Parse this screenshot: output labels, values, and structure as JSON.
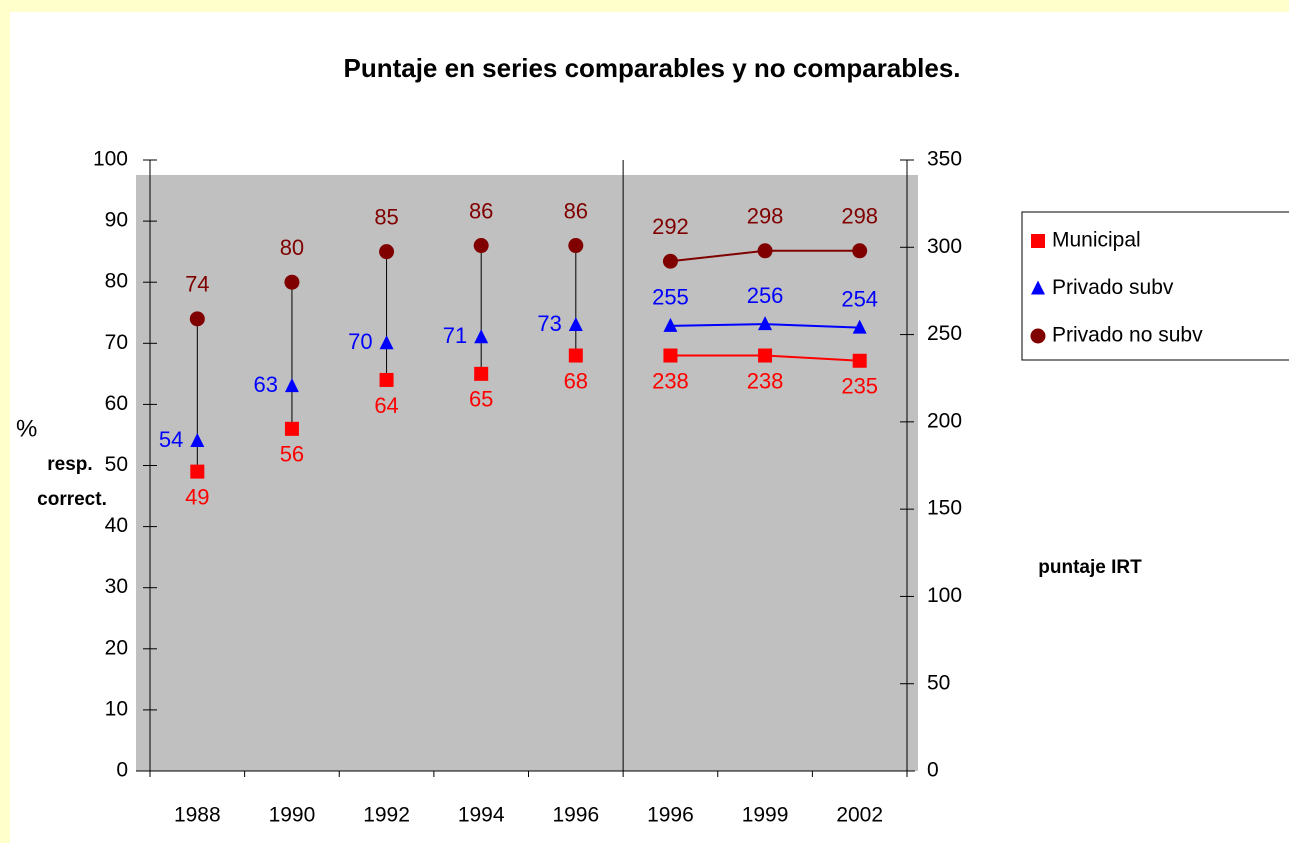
{
  "chart_data": {
    "type": "line",
    "title": "Puntaje en series comparables y no comparables.",
    "y_label_lines": [
      "%",
      "resp.",
      "correct."
    ],
    "y2_label": "puntaje IRT",
    "categories": [
      "1988",
      "1990",
      "1992",
      "1994",
      "1996",
      "1996",
      "1999",
      "2002"
    ],
    "ylim": [
      0,
      100
    ],
    "yticks": [
      0,
      10,
      20,
      30,
      40,
      50,
      60,
      70,
      80,
      90,
      100
    ],
    "y2lim": [
      0,
      350
    ],
    "y2ticks": [
      0,
      50,
      100,
      150,
      200,
      250,
      300,
      350
    ],
    "legend": "right",
    "series": [
      {
        "name": "Municipal",
        "color": "#ff0000",
        "marker": "square",
        "values": [
          49,
          56,
          64,
          65,
          68,
          null,
          null,
          null
        ],
        "y2_values": [
          null,
          null,
          null,
          null,
          null,
          238,
          238,
          235
        ]
      },
      {
        "name": "Privado subv",
        "color": "#0000ff",
        "marker": "triangle",
        "values": [
          54,
          63,
          70,
          71,
          73,
          null,
          null,
          null
        ],
        "y2_values": [
          null,
          null,
          null,
          null,
          null,
          255,
          256,
          254
        ]
      },
      {
        "name": "Privado no subv",
        "color": "#800000",
        "marker": "circle",
        "values": [
          74,
          80,
          85,
          86,
          86,
          null,
          null,
          null
        ],
        "y2_values": [
          null,
          null,
          null,
          null,
          null,
          292,
          298,
          298
        ]
      }
    ]
  }
}
